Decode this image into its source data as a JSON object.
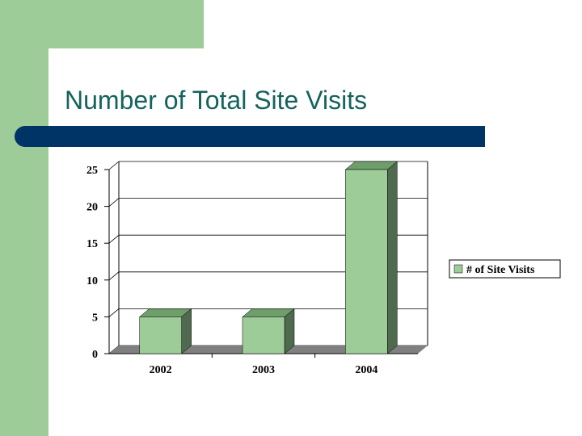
{
  "slide": {
    "title": "Number of Total Site Visits"
  },
  "chart_data": {
    "type": "bar",
    "categories": [
      "2002",
      "2003",
      "2004"
    ],
    "series": [
      {
        "name": "# of Site Visits",
        "values": [
          5,
          5,
          25
        ]
      }
    ],
    "ylim": [
      0,
      25
    ],
    "yticks": [
      "0",
      "5",
      "10",
      "15",
      "20",
      "25"
    ],
    "grid": true,
    "legend": "right",
    "three_d": true,
    "colors": {
      "bar_front": "#9dcc98",
      "bar_top": "#6e9e6a",
      "bar_side": "#4f6a4f",
      "floor": "#808080",
      "grid": "#000000"
    }
  }
}
